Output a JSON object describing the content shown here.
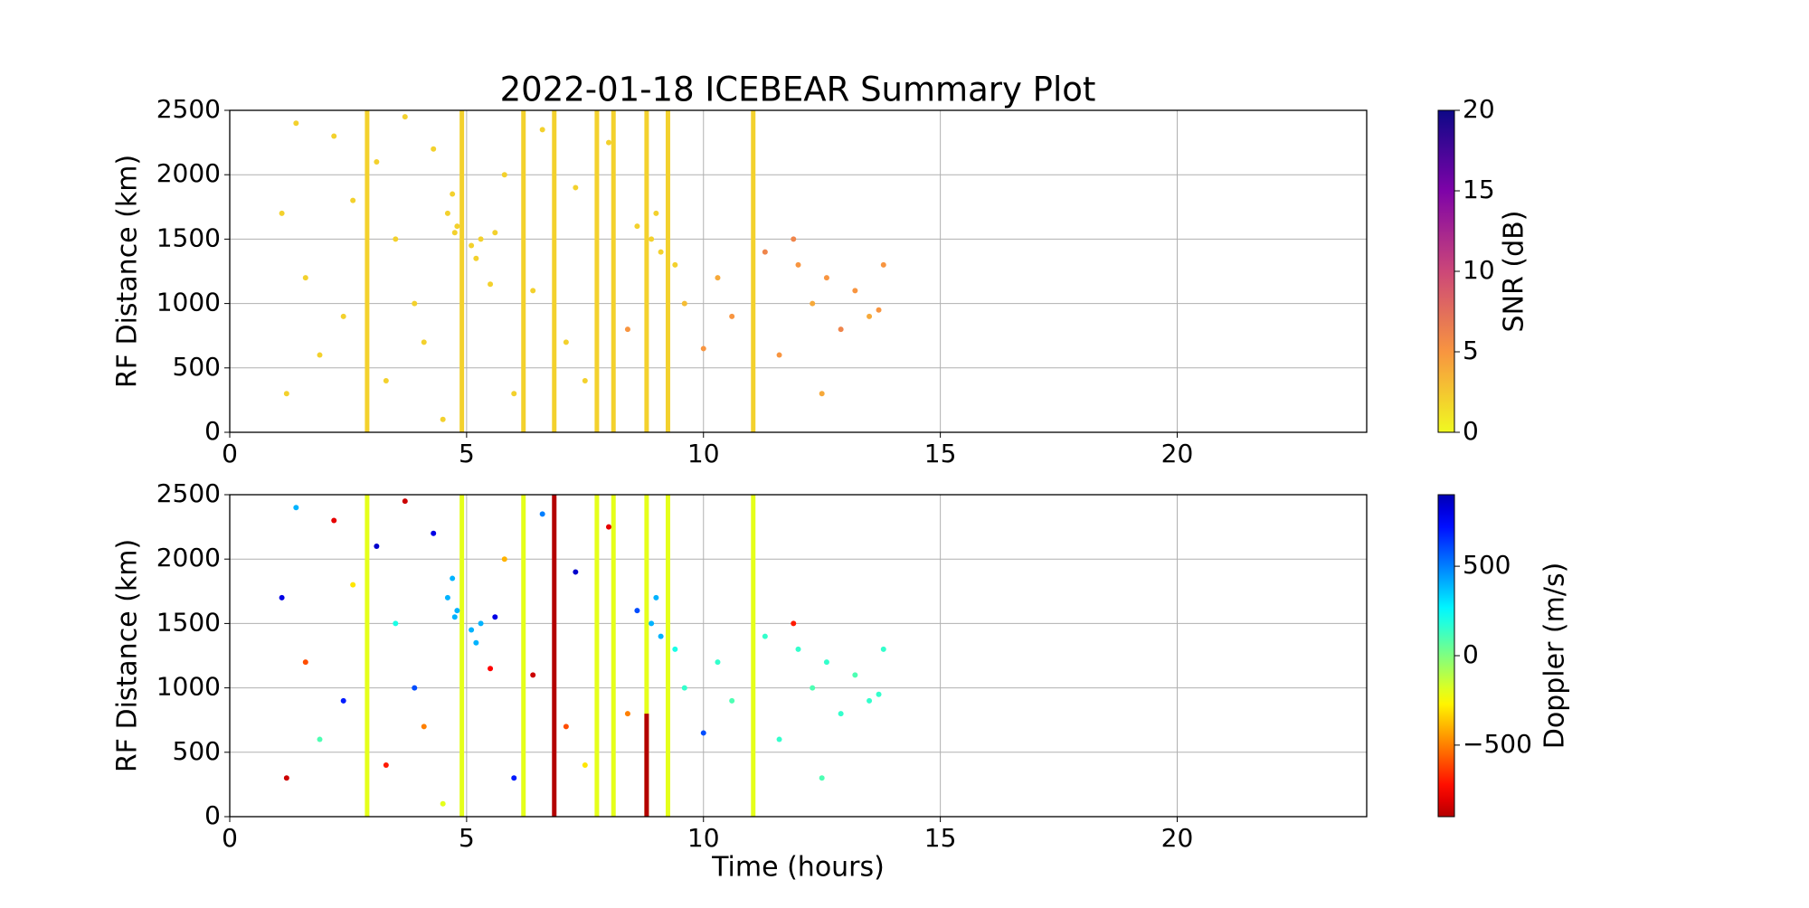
{
  "chart_data": [
    {
      "type": "scatter",
      "title": "2022-01-18 ICEBEAR Summary Plot",
      "ylabel": "RF Distance (km)",
      "xlim": [
        0,
        24
      ],
      "ylim": [
        0,
        2500
      ],
      "xticks": [
        0,
        5,
        10,
        15,
        20
      ],
      "yticks": [
        0,
        500,
        1000,
        1500,
        2000,
        2500
      ],
      "grid": true,
      "colorbar": {
        "label": "SNR (dB)",
        "lim": [
          0,
          20
        ],
        "ticks": [
          0,
          5,
          10,
          15,
          20
        ],
        "colormap": "plasma_r"
      },
      "streaks": [
        {
          "x": 2.9,
          "y": [
            0,
            2500
          ],
          "c": 2
        },
        {
          "x": 4.9,
          "y": [
            0,
            2500
          ],
          "c": 2
        },
        {
          "x": 6.2,
          "y": [
            0,
            2500
          ],
          "c": 2
        },
        {
          "x": 6.85,
          "y": [
            0,
            2500
          ],
          "c": 2
        },
        {
          "x": 7.75,
          "y": [
            0,
            2500
          ],
          "c": 2
        },
        {
          "x": 8.1,
          "y": [
            0,
            2500
          ],
          "c": 2
        },
        {
          "x": 8.8,
          "y": [
            0,
            2500
          ],
          "c": 2
        },
        {
          "x": 9.25,
          "y": [
            0,
            2500
          ],
          "c": 2
        },
        {
          "x": 11.05,
          "y": [
            0,
            2500
          ],
          "c": 2
        }
      ],
      "points": {
        "x": [
          1.1,
          1.2,
          1.4,
          1.6,
          1.9,
          2.2,
          2.4,
          2.6,
          3.1,
          3.3,
          3.5,
          3.7,
          3.9,
          4.1,
          4.3,
          4.5,
          4.6,
          4.7,
          4.75,
          4.8,
          5.1,
          5.2,
          5.3,
          5.5,
          5.6,
          5.8,
          6.0,
          6.4,
          6.6,
          7.1,
          7.3,
          7.5,
          8.0,
          8.4,
          8.6,
          8.9,
          9.0,
          9.1,
          9.4,
          9.6,
          10.0,
          10.3,
          10.6,
          11.3,
          11.6,
          12.0,
          12.3,
          12.6,
          12.9,
          13.2,
          13.5,
          13.8,
          13.7,
          12.5,
          11.9
        ],
        "y": [
          1700,
          300,
          2400,
          1200,
          600,
          2300,
          900,
          1800,
          2100,
          400,
          1500,
          2450,
          1000,
          700,
          2200,
          100,
          1700,
          1850,
          1550,
          1600,
          1450,
          1350,
          1500,
          1150,
          1550,
          2000,
          300,
          1100,
          2350,
          700,
          1900,
          400,
          2250,
          800,
          1600,
          1500,
          1700,
          1400,
          1300,
          1000,
          650,
          1200,
          900,
          1400,
          600,
          1300,
          1000,
          1200,
          800,
          1100,
          900,
          1300,
          950,
          300,
          1500
        ],
        "c": [
          2,
          2,
          2,
          2,
          2,
          2,
          2,
          2,
          2,
          2,
          2,
          2,
          2,
          2,
          2,
          2,
          2,
          2,
          2,
          2,
          2,
          2,
          2,
          2,
          2,
          2,
          2,
          2,
          2,
          2,
          2,
          2,
          2,
          5,
          2,
          2,
          2,
          2,
          2,
          3,
          5,
          4,
          5,
          6,
          5,
          5,
          4,
          5,
          6,
          5,
          4,
          5,
          5,
          4,
          6
        ]
      }
    },
    {
      "type": "scatter",
      "ylabel": "RF Distance (km)",
      "xlabel": "Time (hours)",
      "xlim": [
        0,
        24
      ],
      "ylim": [
        0,
        2500
      ],
      "xticks": [
        0,
        5,
        10,
        15,
        20
      ],
      "yticks": [
        0,
        500,
        1000,
        1500,
        2000,
        2500
      ],
      "grid": true,
      "colorbar": {
        "label": "Doppler (m/s)",
        "lim": [
          -900,
          900
        ],
        "ticks": [
          {
            "value": -500,
            "label": "−500"
          },
          0,
          500
        ],
        "colormap": "jet_r"
      },
      "streaks": [
        {
          "x": 2.9,
          "y": [
            0,
            2500
          ],
          "c": -200
        },
        {
          "x": 4.9,
          "y": [
            0,
            2500
          ],
          "c": -200
        },
        {
          "x": 6.2,
          "y": [
            0,
            2500
          ],
          "c": -200
        },
        {
          "x": 6.85,
          "y": [
            0,
            2500
          ],
          "c": -900
        },
        {
          "x": 7.75,
          "y": [
            0,
            2500
          ],
          "c": -200
        },
        {
          "x": 8.1,
          "y": [
            0,
            2500
          ],
          "c": -200
        },
        {
          "x": 8.8,
          "y": [
            0,
            2500
          ],
          "c": -200
        },
        {
          "x": 8.8,
          "y": [
            0,
            800
          ],
          "c": -900
        },
        {
          "x": 9.25,
          "y": [
            0,
            2500
          ],
          "c": -200
        },
        {
          "x": 11.05,
          "y": [
            0,
            2500
          ],
          "c": -200
        }
      ],
      "points": {
        "x": [
          1.1,
          1.2,
          1.4,
          1.6,
          1.9,
          2.2,
          2.4,
          2.6,
          3.1,
          3.3,
          3.5,
          3.7,
          3.9,
          4.1,
          4.3,
          4.5,
          4.6,
          4.7,
          4.75,
          4.8,
          5.1,
          5.2,
          5.3,
          5.5,
          5.6,
          5.8,
          6.0,
          6.4,
          6.6,
          7.1,
          7.3,
          7.5,
          8.0,
          8.4,
          8.6,
          8.9,
          9.0,
          9.1,
          9.4,
          9.6,
          10.0,
          10.3,
          10.6,
          11.3,
          11.6,
          12.0,
          12.3,
          12.6,
          12.9,
          13.2,
          13.5,
          13.8,
          13.7,
          12.5,
          11.9
        ],
        "y": [
          1700,
          300,
          2400,
          1200,
          600,
          2300,
          900,
          1800,
          2100,
          400,
          1500,
          2450,
          1000,
          700,
          2200,
          100,
          1700,
          1850,
          1550,
          1600,
          1450,
          1350,
          1500,
          1150,
          1550,
          2000,
          300,
          1100,
          2350,
          700,
          1900,
          400,
          2250,
          800,
          1600,
          1500,
          1700,
          1400,
          1300,
          1000,
          650,
          1200,
          900,
          1400,
          600,
          1300,
          1000,
          1200,
          800,
          1100,
          900,
          1300,
          950,
          300,
          1500
        ],
        "c": [
          800,
          -850,
          400,
          -600,
          100,
          -800,
          700,
          -300,
          850,
          -700,
          200,
          -850,
          600,
          -500,
          800,
          -200,
          400,
          400,
          400,
          400,
          400,
          400,
          400,
          -750,
          800,
          -400,
          700,
          -850,
          500,
          -600,
          850,
          -300,
          -800,
          -500,
          600,
          400,
          400,
          400,
          200,
          150,
          600,
          150,
          100,
          150,
          150,
          150,
          100,
          150,
          150,
          100,
          150,
          150,
          150,
          100,
          -700
        ]
      }
    }
  ]
}
